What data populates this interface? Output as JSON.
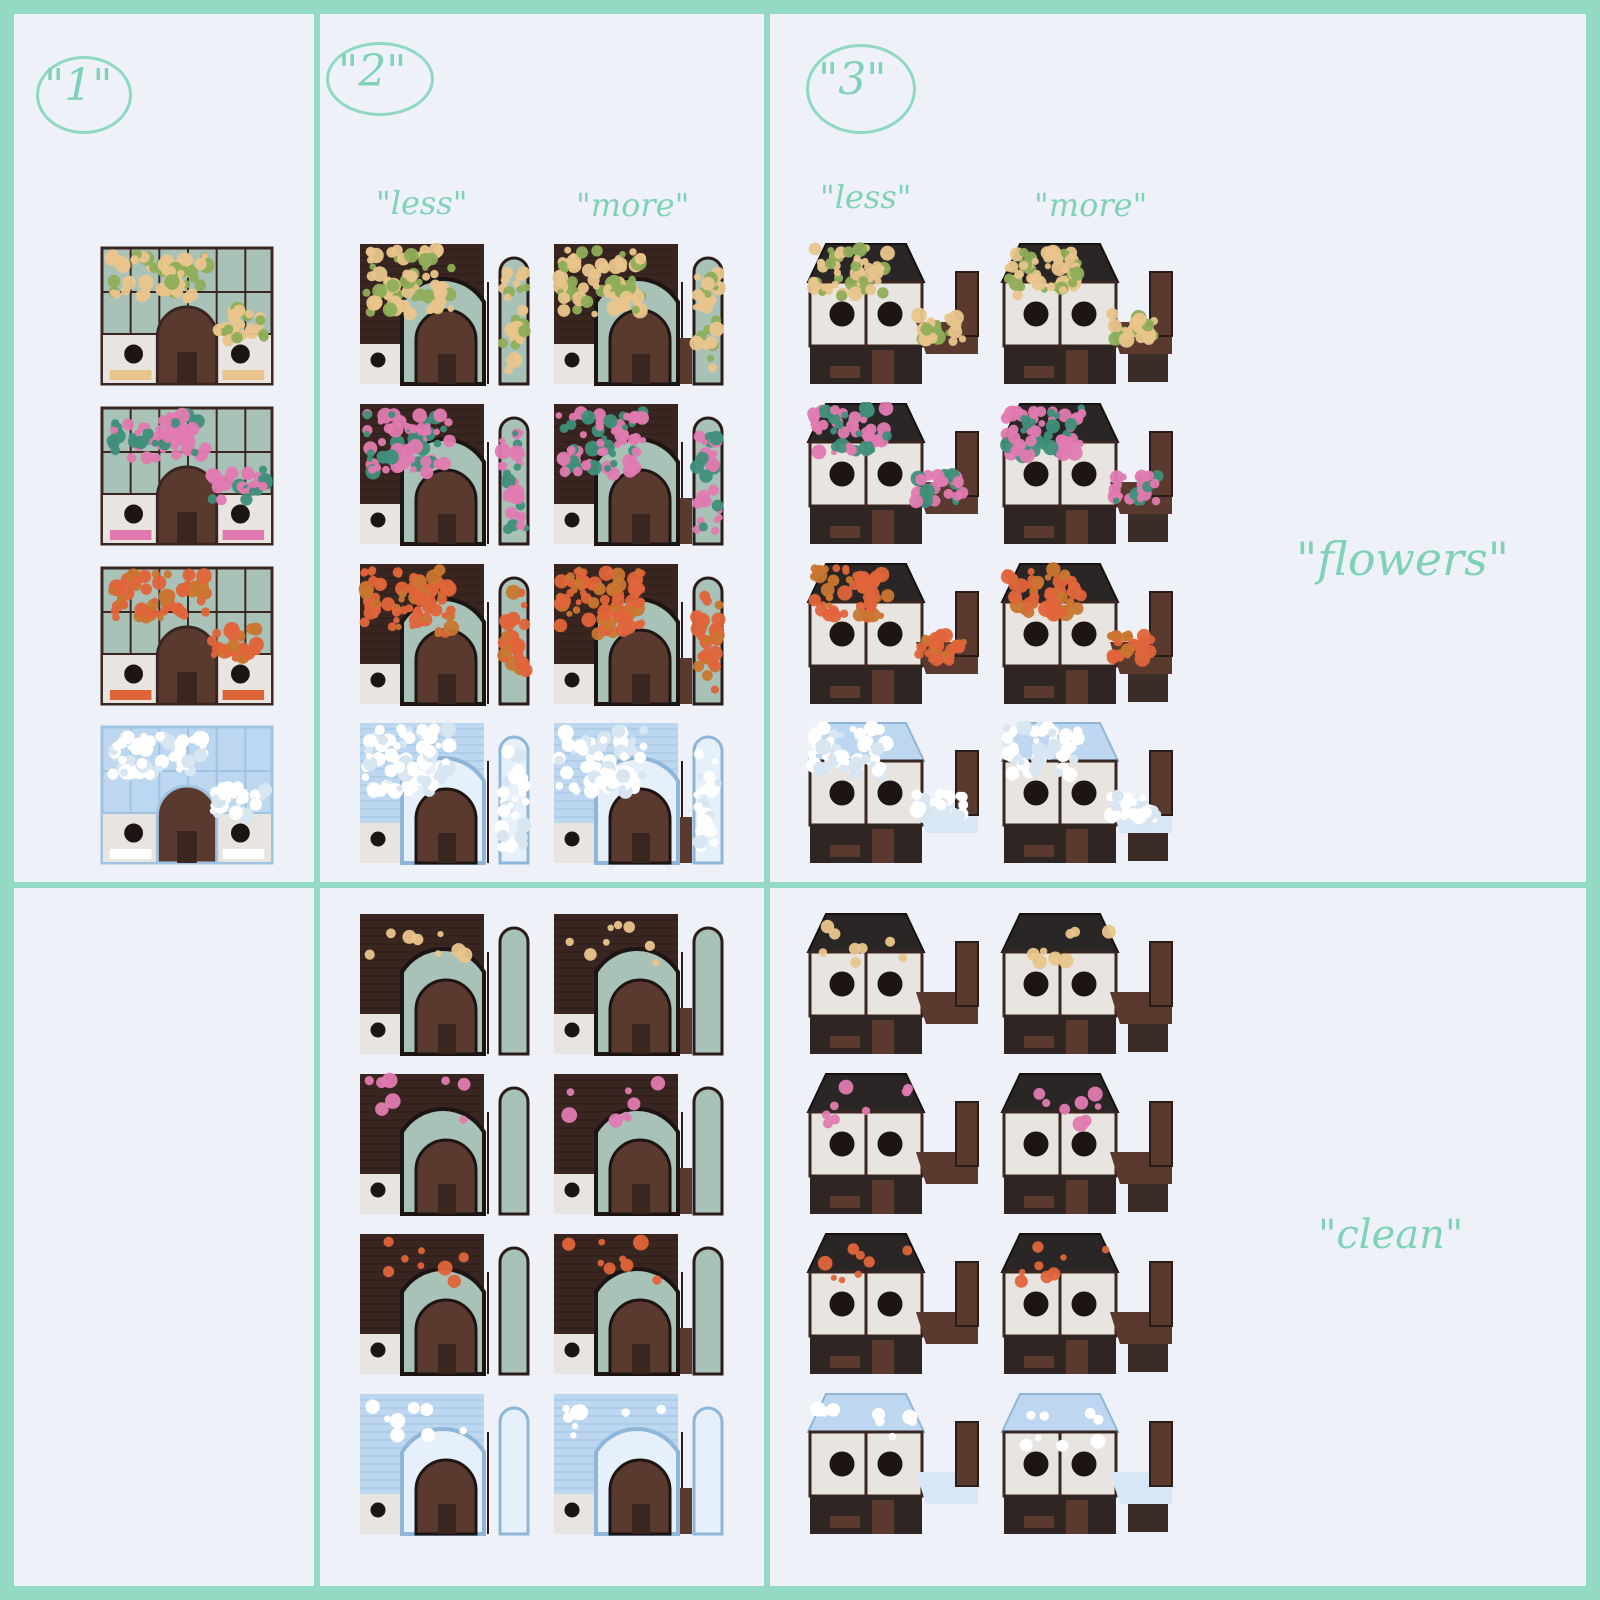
{
  "columns": [
    {
      "number": "\"1\""
    },
    {
      "number": "\"2\"",
      "less_label": "\"less\"",
      "more_label": "\"more\""
    },
    {
      "number": "\"3\"",
      "less_label": "\"less\"",
      "more_label": "\"more\""
    }
  ],
  "rows": [
    {
      "label": "\"flowers\""
    },
    {
      "label": "\"clean\""
    }
  ],
  "seasons": [
    "spring",
    "summer",
    "fall",
    "winter"
  ],
  "colors": {
    "background": "#94d9c4",
    "panel": "#eef2f8",
    "accent_text": "#7fd1b8",
    "wood_dark": "#3a2620",
    "wood_mid": "#5a3a2e",
    "glass": "#a9c2b8",
    "wall_white": "#e8e4e0",
    "roof_black": "#2b2626",
    "spring_flower": "#e9c58c",
    "summer_flower": "#e07ab0",
    "fall_flower": "#e0643a",
    "winter_snow": "#ffffff",
    "ice_blue": "#bcd7ef",
    "leaf_spring": "#8fae5a",
    "leaf_summer": "#3f8f7a",
    "leaf_fall": "#c9762f"
  }
}
